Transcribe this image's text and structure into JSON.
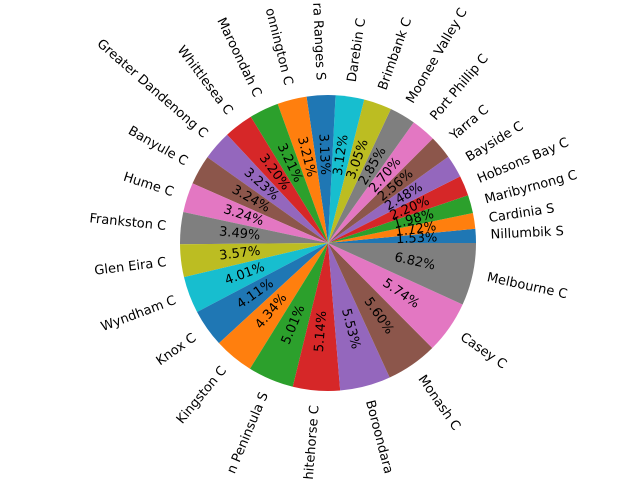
{
  "chart_data": {
    "type": "pie",
    "categories": [
      "Nillumbik S",
      "Cardinia S",
      "Maribyrnong C",
      "Hobsons Bay C",
      "Bayside C",
      "Yarra C",
      "Port Phillip C",
      "Moonee Valley C",
      "Brimbank C",
      "Darebin C",
      "ra Ranges S",
      "onnington C",
      "Maroondah C",
      "Whittlesea C",
      "Greater Dandenong C",
      "Banyule C",
      "Hume C",
      "Frankston C",
      "Glen Eira C",
      "Wyndham C",
      "Knox C",
      "Kingston C",
      "n Peninsula S",
      "hitehorse C",
      "Boroondara",
      "Monash C",
      "Casey C",
      "Melbourne C"
    ],
    "values": [
      1.53,
      1.72,
      1.98,
      2.2,
      2.48,
      2.56,
      2.7,
      2.85,
      3.05,
      3.12,
      3.13,
      3.21,
      3.21,
      3.2,
      3.23,
      3.24,
      3.24,
      3.49,
      3.57,
      4.01,
      4.11,
      4.34,
      5.01,
      5.14,
      5.53,
      5.6,
      5.74,
      6.82
    ],
    "value_labels": [
      "1.53%",
      "1.72%",
      "1.98%",
      "2.20%",
      "2.48%",
      "2.56%",
      "2.70%",
      "2.85%",
      "3.05%",
      "3.12%",
      "3.13%",
      "3.21%",
      "3.21%",
      "3.20%",
      "3.23%",
      "3.24%",
      "3.24%",
      "3.49%",
      "3.57%",
      "4.01%",
      "4.11%",
      "4.34%",
      "5.01%",
      "5.14%",
      "5.53%",
      "5.60%",
      "5.74%",
      "6.82%"
    ],
    "colors": [
      "#1f77b4",
      "#ff7f0e",
      "#2ca02c",
      "#d62728",
      "#9467bd",
      "#8c564b",
      "#e377c2",
      "#7f7f7f",
      "#bcbd22",
      "#17becf",
      "#1f77b4",
      "#ff7f0e",
      "#2ca02c",
      "#d62728",
      "#9467bd",
      "#8c564b",
      "#e377c2",
      "#7f7f7f",
      "#bcbd22",
      "#17becf",
      "#1f77b4",
      "#ff7f0e",
      "#2ca02c",
      "#d62728",
      "#9467bd",
      "#8c564b",
      "#e377c2",
      "#7f7f7f"
    ]
  }
}
